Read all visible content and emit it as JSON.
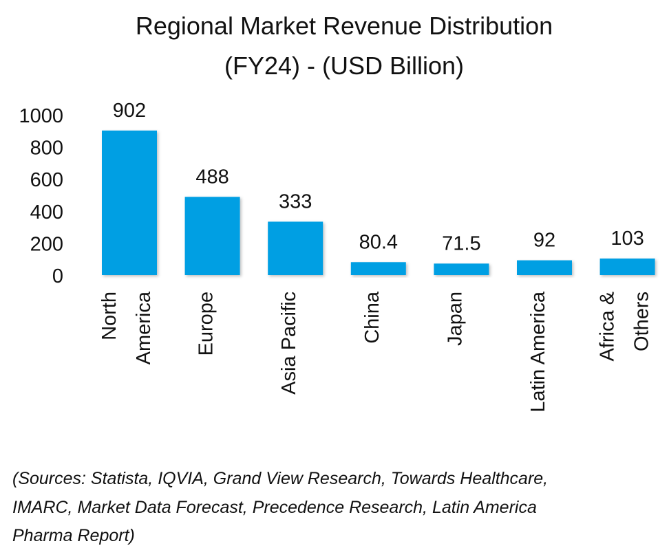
{
  "chart_data": {
    "type": "bar",
    "title_lines": [
      "Regional Market Revenue Distribution",
      "(FY24) - (USD Billion)"
    ],
    "categories": [
      [
        "North",
        "America"
      ],
      [
        "Europe"
      ],
      [
        "Asia Pacific"
      ],
      [
        "China"
      ],
      [
        "Japan"
      ],
      [
        "Latin America"
      ],
      [
        "Africa &",
        "Others"
      ]
    ],
    "values": [
      902,
      488,
      333,
      80.4,
      71.5,
      92,
      103
    ],
    "data_labels": [
      "902",
      "488",
      "333",
      "80.4",
      "71.5",
      "92",
      "103"
    ],
    "yticks": [
      "0",
      "200",
      "400",
      "600",
      "800",
      "1000"
    ],
    "ytick_values": [
      0,
      200,
      400,
      600,
      800,
      1000
    ],
    "ylim": [
      0,
      1000
    ],
    "xlabel": "",
    "ylabel": "",
    "grid": false,
    "bar_color": "#009FE3"
  },
  "sources_lines": [
    "(Sources: Statista, IQVIA, Grand View Research, Towards Healthcare,",
    "IMARC, Market Data Forecast, Precedence Research, Latin America",
    "Pharma Report)"
  ]
}
